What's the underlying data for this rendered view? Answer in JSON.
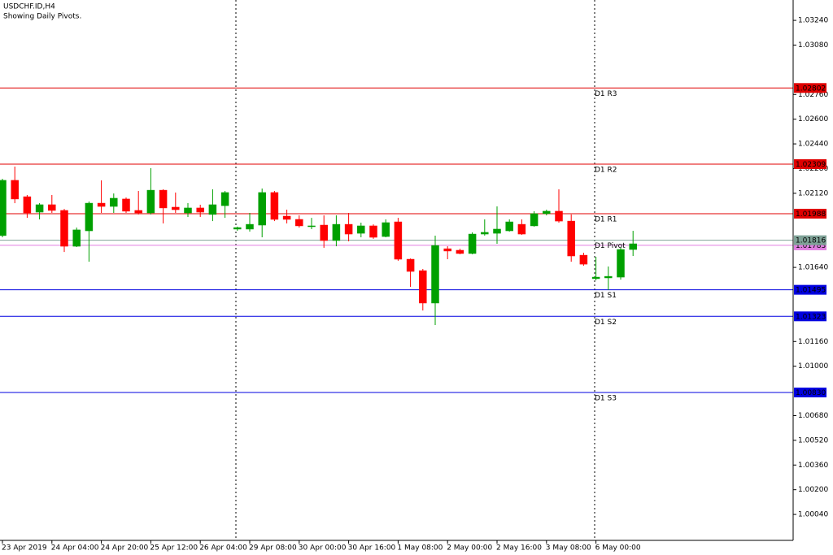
{
  "chart_data": {
    "type": "candlestick",
    "title": "USDCHF.ID,H4",
    "subtitle": "Showing Daily Pivots.",
    "categories": [
      "23 Apr 2019",
      null,
      null,
      null,
      "24 Apr 04:00",
      null,
      null,
      null,
      "24 Apr 20:00",
      null,
      null,
      null,
      "25 Apr 12:00",
      null,
      null,
      null,
      "26 Apr 04:00",
      null,
      null,
      null,
      "29 Apr 08:00",
      null,
      null,
      null,
      "30 Apr 00:00",
      null,
      null,
      null,
      "30 Apr 16:00",
      null,
      null,
      null,
      "1 May 08:00",
      null,
      null,
      null,
      "2 May 00:00",
      null,
      null,
      null,
      "2 May 16:00",
      null,
      null,
      null,
      "3 May 08:00",
      null,
      null,
      null,
      "6 May 00:00",
      null,
      null,
      null
    ],
    "open": [
      1.01846,
      1.02204,
      1.02098,
      1.01998,
      1.02046,
      1.02009,
      1.01777,
      1.01877,
      1.02056,
      1.02035,
      1.02083,
      1.02009,
      1.01993,
      1.0214,
      1.0203,
      1.01993,
      1.02025,
      1.01983,
      1.0204,
      1.01888,
      1.01888,
      1.01914,
      1.02125,
      1.01972,
      1.01951,
      1.01904,
      1.01914,
      1.01814,
      1.01919,
      1.01861,
      1.01909,
      1.0184,
      1.01935,
      1.01693,
      1.01619,
      1.01409,
      1.01761,
      1.01751,
      1.0173,
      1.01856,
      1.01861,
      1.01877,
      1.01919,
      1.01909,
      1.01988,
      1.02004,
      1.0194,
      1.01719,
      1.01567,
      1.01572,
      1.01577,
      1.01756
    ],
    "high": [
      1.02214,
      1.02293,
      1.02109,
      1.02056,
      1.02109,
      1.02019,
      1.01898,
      1.02067,
      1.02204,
      1.02119,
      1.02093,
      1.02135,
      1.02283,
      1.02146,
      1.02125,
      1.02056,
      1.02046,
      1.02146,
      1.02135,
      1.01904,
      1.01993,
      1.02151,
      1.02135,
      1.02014,
      1.01977,
      1.01961,
      1.01977,
      1.01977,
      1.01993,
      1.0193,
      1.01919,
      1.01951,
      1.01961,
      1.01698,
      1.0163,
      1.01846,
      1.01777,
      1.01761,
      1.01867,
      1.01951,
      1.02035,
      1.01951,
      1.01951,
      1.02004,
      1.02014,
      1.02146,
      1.01983,
      1.01735,
      1.01709,
      1.01646,
      1.01767,
      1.01877
    ],
    "low": [
      1.01835,
      1.02056,
      1.01961,
      1.01951,
      1.01993,
      1.0174,
      1.01772,
      1.01677,
      1.01993,
      1.01993,
      1.01993,
      1.01983,
      1.01983,
      1.01925,
      1.01993,
      1.01967,
      1.01967,
      1.0194,
      1.01961,
      1.01877,
      1.01872,
      1.01835,
      1.0194,
      1.01925,
      1.01898,
      1.01888,
      1.01767,
      1.01777,
      1.01809,
      1.01835,
      1.01825,
      1.01835,
      1.01683,
      1.01514,
      1.01361,
      1.01267,
      1.01693,
      1.01725,
      1.01725,
      1.01846,
      1.01793,
      1.01872,
      1.01851,
      1.01904,
      1.01977,
      1.0193,
      1.01677,
      1.01651,
      1.01556,
      1.01493,
      1.01561,
      1.01714
    ],
    "close": [
      1.02204,
      1.02083,
      1.01993,
      1.02046,
      1.02009,
      1.01777,
      1.01883,
      1.02056,
      1.02035,
      1.02088,
      1.02004,
      1.01993,
      1.0214,
      1.02025,
      1.02014,
      1.02025,
      1.01998,
      1.02046,
      1.02125,
      1.01898,
      1.01919,
      1.02125,
      1.01951,
      1.01951,
      1.01909,
      1.01909,
      1.01814,
      1.01919,
      1.01856,
      1.01909,
      1.01835,
      1.0193,
      1.01693,
      1.01614,
      1.01409,
      1.01782,
      1.01746,
      1.0173,
      1.01856,
      1.01867,
      1.01888,
      1.01935,
      1.01856,
      1.01988,
      1.02004,
      1.0194,
      1.01714,
      1.01661,
      1.01577,
      1.01582,
      1.01756,
      1.01793
    ],
    "up_color": "#00a000",
    "down_color": "#ff0000",
    "ylim": [
      0.99872,
      1.03372
    ],
    "yticks": [
      {
        "value": 1.0324,
        "label": "1.03240"
      },
      {
        "value": 1.0308,
        "label": "1.03080"
      },
      {
        "value": 1.0276,
        "label": "1.02760"
      },
      {
        "value": 1.026,
        "label": "1.02600"
      },
      {
        "value": 1.0244,
        "label": "1.02440"
      },
      {
        "value": 1.0228,
        "label": "1.02280"
      },
      {
        "value": 1.0212,
        "label": "1.02120"
      },
      {
        "value": 1.0164,
        "label": "1.01640"
      },
      {
        "value": 1.0116,
        "label": "1.01160"
      },
      {
        "value": 1.01,
        "label": "1.01000"
      },
      {
        "value": 1.0068,
        "label": "1.00680"
      },
      {
        "value": 1.0052,
        "label": "1.00520"
      },
      {
        "value": 1.0036,
        "label": "1.00360"
      },
      {
        "value": 1.002,
        "label": "1.00200"
      },
      {
        "value": 1.0004,
        "label": "1.00040"
      }
    ],
    "price_line": {
      "value": 1.01783,
      "color": "#e07ee0"
    },
    "levels": [
      {
        "name": "D1 R3",
        "value": 1.02802,
        "color": "#e00000"
      },
      {
        "name": "D1 R2",
        "value": 1.02309,
        "color": "#e00000"
      },
      {
        "name": "D1 R1",
        "value": 1.01988,
        "color": "#e00000"
      },
      {
        "name": "D1 Pivot",
        "value": 1.01816,
        "color": "#7fa297"
      },
      {
        "name": "D1 S1",
        "value": 1.01495,
        "color": "#0000e0"
      },
      {
        "name": "D1 S2",
        "value": 1.01323,
        "color": "#0000e0"
      },
      {
        "name": "D1 S3",
        "value": 1.0083,
        "value_label": "1.00830",
        "color": "#0000e0"
      }
    ]
  }
}
